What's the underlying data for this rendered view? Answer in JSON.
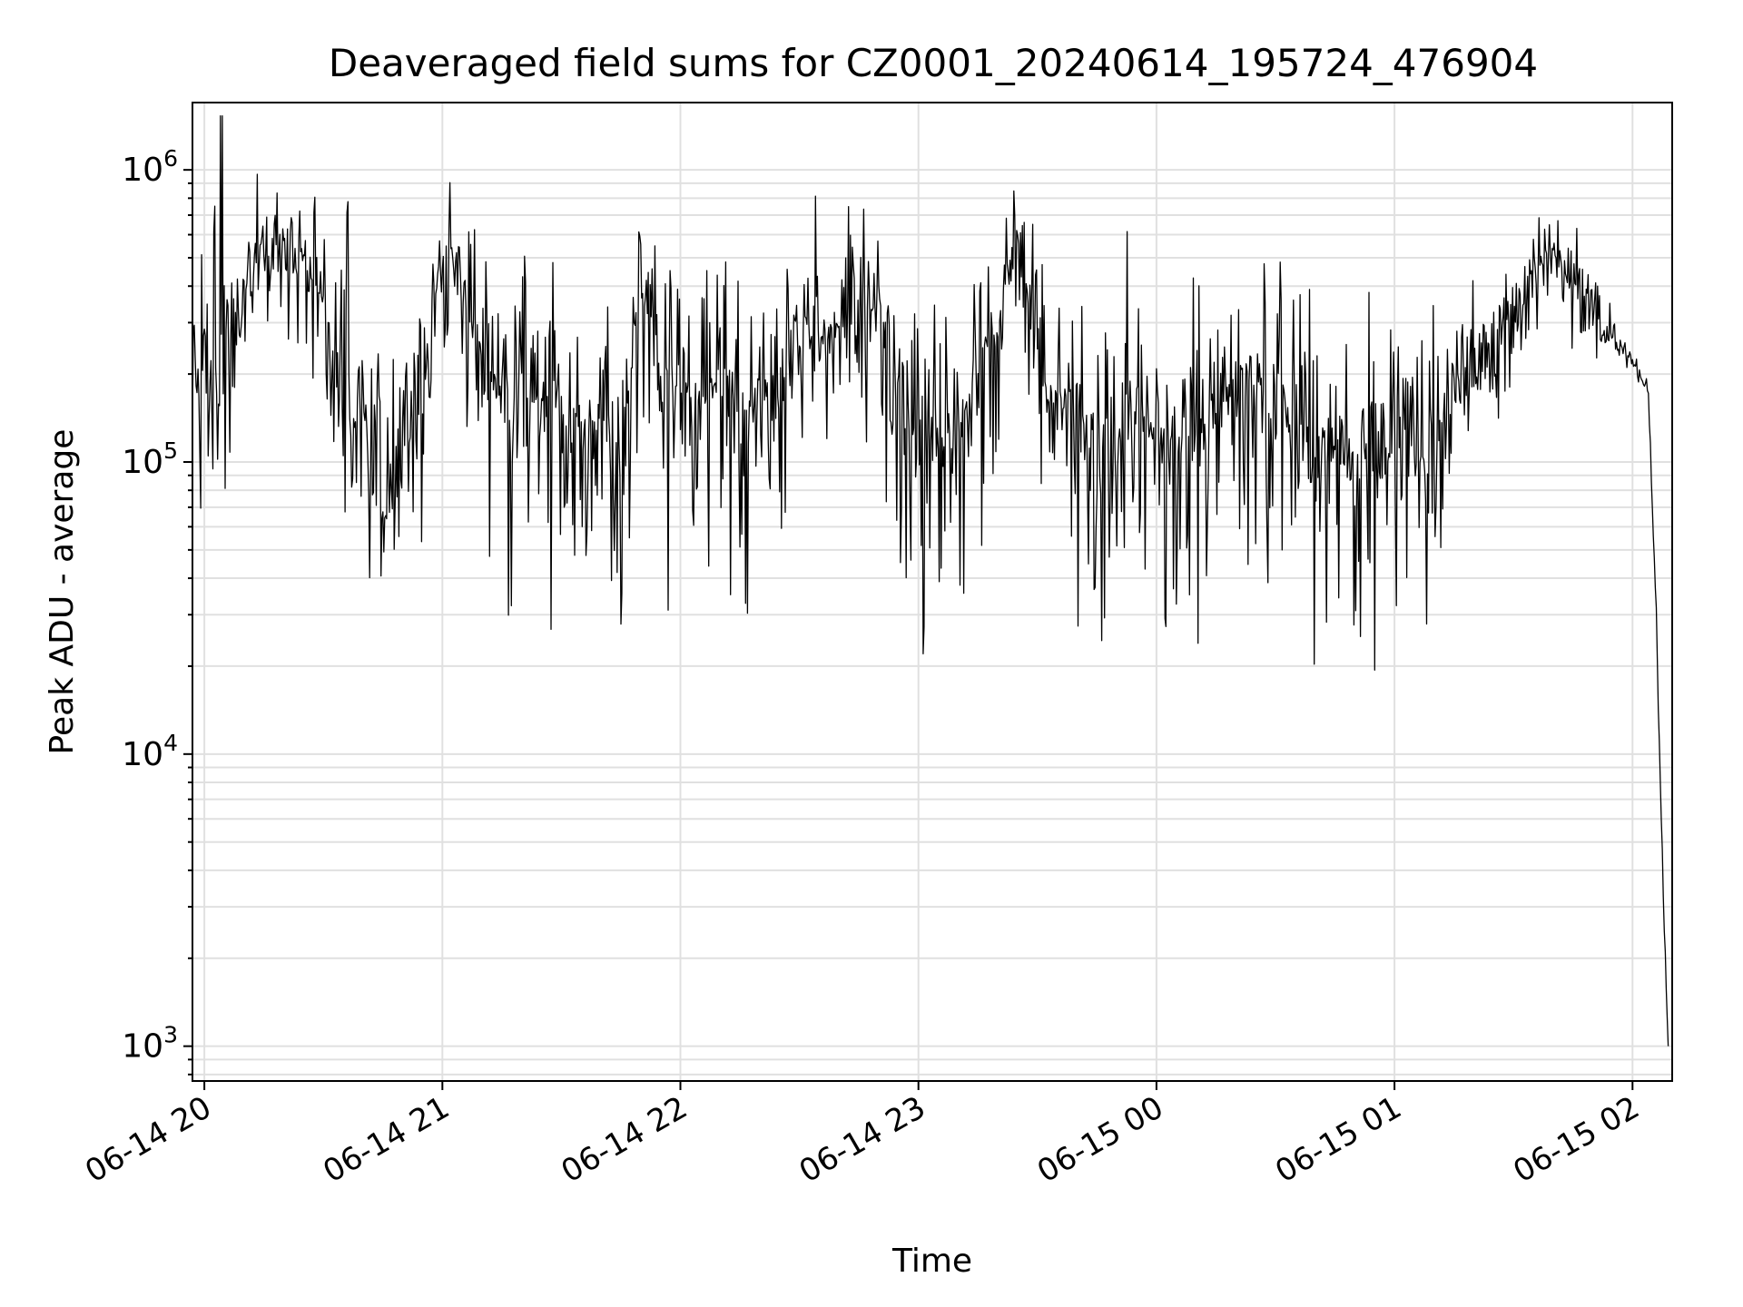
{
  "chart_data": {
    "type": "line",
    "title": "Deaveraged field sums for CZ0001_20240614_195724_476904",
    "xlabel": "Time",
    "ylabel": "Peak ADU - average",
    "xlim": [
      "2024-06-14 19:57",
      "2024-06-15 02:10"
    ],
    "ylim": [
      760,
      1700000
    ],
    "yscale": "log",
    "x_ticks": [
      {
        "t": "2024-06-14 20:00",
        "label": "06-14 20"
      },
      {
        "t": "2024-06-14 21:00",
        "label": "06-14 21"
      },
      {
        "t": "2024-06-14 22:00",
        "label": "06-14 22"
      },
      {
        "t": "2024-06-14 23:00",
        "label": "06-14 23"
      },
      {
        "t": "2024-06-15 00:00",
        "label": "06-15 00"
      },
      {
        "t": "2024-06-15 01:00",
        "label": "06-15 01"
      },
      {
        "t": "2024-06-15 02:00",
        "label": "06-15 02"
      }
    ],
    "y_ticks": [
      {
        "value": 1000,
        "base": "10",
        "exp": "3"
      },
      {
        "value": 10000,
        "base": "10",
        "exp": "4"
      },
      {
        "value": 100000,
        "base": "10",
        "exp": "5"
      },
      {
        "value": 1000000,
        "base": "10",
        "exp": "6"
      }
    ],
    "grid": true,
    "line_color": "#000000",
    "grid_color": "#e0e0e0",
    "series": [
      {
        "name": "",
        "x": [
          "2024-06-14 19:57",
          "2024-06-14 20:00",
          "2024-06-14 20:05",
          "2024-06-14 20:10",
          "2024-06-14 20:15",
          "2024-06-14 20:20",
          "2024-06-14 20:25",
          "2024-06-14 20:30",
          "2024-06-14 20:35",
          "2024-06-14 20:40",
          "2024-06-14 20:45",
          "2024-06-14 20:50",
          "2024-06-14 20:55",
          "2024-06-14 21:00",
          "2024-06-14 21:05",
          "2024-06-14 21:10",
          "2024-06-14 21:15",
          "2024-06-14 21:20",
          "2024-06-14 21:25",
          "2024-06-14 21:30",
          "2024-06-14 21:35",
          "2024-06-14 21:40",
          "2024-06-14 21:45",
          "2024-06-14 21:50",
          "2024-06-14 21:55",
          "2024-06-14 22:00",
          "2024-06-14 22:05",
          "2024-06-14 22:10",
          "2024-06-14 22:15",
          "2024-06-14 22:20",
          "2024-06-14 22:25",
          "2024-06-14 22:30",
          "2024-06-14 22:35",
          "2024-06-14 22:40",
          "2024-06-14 22:45",
          "2024-06-14 22:50",
          "2024-06-14 22:55",
          "2024-06-14 23:00",
          "2024-06-14 23:05",
          "2024-06-14 23:10",
          "2024-06-14 23:15",
          "2024-06-14 23:20",
          "2024-06-14 23:25",
          "2024-06-14 23:30",
          "2024-06-14 23:35",
          "2024-06-14 23:40",
          "2024-06-14 23:45",
          "2024-06-14 23:50",
          "2024-06-14 23:55",
          "2024-06-15 00:00",
          "2024-06-15 00:05",
          "2024-06-15 00:10",
          "2024-06-15 00:15",
          "2024-06-15 00:20",
          "2024-06-15 00:25",
          "2024-06-15 00:30",
          "2024-06-15 00:35",
          "2024-06-15 00:40",
          "2024-06-15 00:45",
          "2024-06-15 00:50",
          "2024-06-15 00:55",
          "2024-06-15 01:00",
          "2024-06-15 01:05",
          "2024-06-15 01:10",
          "2024-06-15 01:15",
          "2024-06-15 01:20",
          "2024-06-15 01:25",
          "2024-06-15 01:30",
          "2024-06-15 01:35",
          "2024-06-15 01:40",
          "2024-06-15 01:45",
          "2024-06-15 01:50",
          "2024-06-15 01:55",
          "2024-06-15 02:00",
          "2024-06-15 02:02",
          "2024-06-15 02:04",
          "2024-06-15 02:05",
          "2024-06-15 02:06",
          "2024-06-15 02:07",
          "2024-06-15 02:08",
          "2024-06-15 02:09"
        ],
        "y": [
          200000,
          180000,
          220000,
          450000,
          500000,
          530000,
          480000,
          350000,
          160000,
          150000,
          120000,
          110000,
          160000,
          550000,
          450000,
          180000,
          200000,
          160000,
          170000,
          150000,
          130000,
          140000,
          120000,
          380000,
          220000,
          170000,
          160000,
          200000,
          150000,
          160000,
          180000,
          250000,
          270000,
          300000,
          350000,
          320000,
          180000,
          140000,
          120000,
          130000,
          200000,
          280000,
          650000,
          230000,
          150000,
          140000,
          130000,
          120000,
          130000,
          115000,
          120000,
          125000,
          150000,
          160000,
          170000,
          150000,
          130000,
          120000,
          110000,
          105000,
          110000,
          150000,
          130000,
          120000,
          180000,
          230000,
          260000,
          350000,
          450000,
          520000,
          400000,
          320000,
          270000,
          220000,
          195000,
          175000,
          70000,
          30000,
          8000,
          2500,
          1000
        ],
        "spread_above": [
          1.5,
          2.2,
          3.5,
          1.6,
          1.5,
          1.5,
          1.4,
          1.5,
          2.5,
          1.6,
          1.7,
          1.8,
          1.6,
          1.3,
          1.5,
          1.8,
          1.6,
          1.9,
          1.8,
          1.7,
          1.8,
          1.7,
          1.7,
          1.6,
          1.8,
          1.9,
          1.8,
          1.7,
          1.8,
          1.7,
          1.7,
          1.6,
          1.7,
          1.6,
          1.6,
          1.5,
          1.7,
          1.8,
          1.8,
          1.7,
          1.6,
          1.3,
          1.4,
          1.6,
          1.7,
          1.7,
          1.9,
          2.0,
          2.2,
          2.0,
          1.8,
          1.9,
          2.0,
          1.9,
          1.9,
          1.8,
          1.9,
          1.9,
          1.8,
          1.9,
          1.9,
          1.8,
          1.6,
          1.7,
          1.5,
          1.4,
          1.4,
          1.4,
          1.3,
          1.2,
          1.3,
          1.3,
          1.1,
          1.05,
          1.05,
          1.05,
          1.05,
          1.05,
          1.05,
          1.05,
          1.05
        ],
        "spread_below": [
          1.8,
          1.7,
          2.0,
          1.6,
          1.5,
          1.5,
          1.6,
          1.9,
          2.0,
          2.1,
          2.0,
          1.7,
          2.0,
          1.5,
          2.0,
          2.8,
          2.5,
          2.5,
          2.4,
          2.6,
          2.3,
          2.3,
          2.2,
          1.9,
          2.5,
          2.8,
          2.5,
          2.3,
          2.4,
          2.3,
          2.5,
          2.0,
          2.0,
          2.0,
          1.8,
          1.8,
          2.5,
          2.5,
          2.4,
          2.3,
          2.5,
          2.2,
          1.3,
          2.0,
          2.7,
          2.6,
          2.6,
          2.8,
          3.0,
          2.8,
          2.7,
          2.8,
          2.8,
          2.7,
          2.8,
          2.7,
          2.6,
          2.5,
          2.4,
          2.3,
          2.6,
          2.5,
          2.3,
          1.8,
          1.6,
          1.4,
          1.5,
          1.4,
          1.4,
          1.3,
          1.3,
          1.3,
          1.1,
          1.05,
          1.05,
          1.05,
          1.05,
          1.05,
          1.05,
          1.05,
          1.05
        ]
      }
    ]
  }
}
